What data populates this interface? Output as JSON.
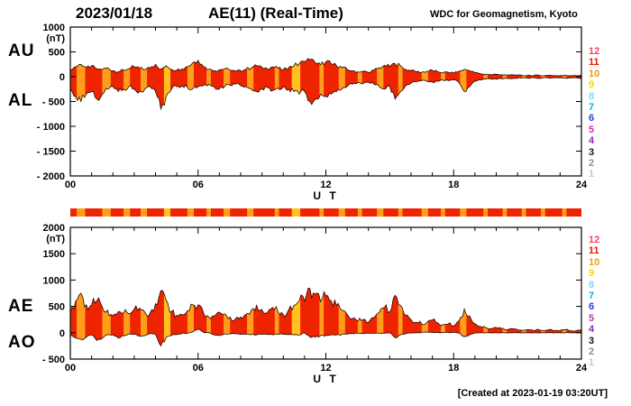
{
  "header": {
    "date": "2023/01/18",
    "title": "AE(11) (Real-Time)",
    "org": "WDC for Geomagnetism, Kyoto"
  },
  "footer": {
    "created": "[Created at 2023-01-19 03:20UT]"
  },
  "panels": {
    "top": {
      "labels": [
        "AU",
        "AL"
      ]
    },
    "bottom": {
      "labels": [
        "AE",
        "AO"
      ]
    }
  },
  "stations": [
    {
      "id": "12",
      "color": "#FF4060"
    },
    {
      "id": "11",
      "color": "#EE1500"
    },
    {
      "id": "10",
      "color": "#FF9900"
    },
    {
      "id": "9",
      "color": "#FFD300"
    },
    {
      "id": "8",
      "color": "#7FDBEA"
    },
    {
      "id": "7",
      "color": "#00B7D9"
    },
    {
      "id": "6",
      "color": "#2A3FE0"
    },
    {
      "id": "5",
      "color": "#CC2FB4"
    },
    {
      "id": "4",
      "color": "#8A2BBE"
    },
    {
      "id": "3",
      "color": "#1A1A1A"
    },
    {
      "id": "2",
      "color": "#8C8C8C"
    },
    {
      "id": "1",
      "color": "#C8C8C8"
    }
  ],
  "colors": {
    "fill_red": "#EE2400",
    "stripe_orange": "#FF9E1B",
    "trace": "#230800"
  },
  "color_bar": {
    "segments": [
      {
        "start": 0.3,
        "end": 0.7,
        "color": "#FF9E1B"
      },
      {
        "start": 1.5,
        "end": 1.9,
        "color": "#FF9E1B"
      },
      {
        "start": 2.5,
        "end": 2.8,
        "color": "#FF9E1B"
      },
      {
        "start": 3.3,
        "end": 3.6,
        "color": "#FF9E1B"
      },
      {
        "start": 4.4,
        "end": 4.7,
        "color": "#FFC21E"
      },
      {
        "start": 5.5,
        "end": 5.8,
        "color": "#FF9E1B"
      },
      {
        "start": 6.4,
        "end": 6.6,
        "color": "#FF9E1B"
      },
      {
        "start": 7.2,
        "end": 7.5,
        "color": "#FF9E1B"
      },
      {
        "start": 8.3,
        "end": 8.6,
        "color": "#FF9E1B"
      },
      {
        "start": 9.6,
        "end": 9.8,
        "color": "#FF9E1B"
      },
      {
        "start": 10.4,
        "end": 10.8,
        "color": "#FFC21E"
      },
      {
        "start": 11.7,
        "end": 11.9,
        "color": "#FF9E1B"
      },
      {
        "start": 12.6,
        "end": 12.9,
        "color": "#FF9E1B"
      },
      {
        "start": 13.5,
        "end": 13.7,
        "color": "#FF9E1B"
      },
      {
        "start": 14.4,
        "end": 14.7,
        "color": "#FF9E1B"
      },
      {
        "start": 15.4,
        "end": 15.6,
        "color": "#FF9E1B"
      },
      {
        "start": 16.5,
        "end": 16.8,
        "color": "#FF9E1B"
      },
      {
        "start": 17.4,
        "end": 17.6,
        "color": "#FF9E1B"
      },
      {
        "start": 18.3,
        "end": 18.6,
        "color": "#FF9E1B"
      },
      {
        "start": 19.4,
        "end": 19.6,
        "color": "#FF9E1B"
      },
      {
        "start": 20.3,
        "end": 20.5,
        "color": "#FF9E1B"
      },
      {
        "start": 21.2,
        "end": 21.4,
        "color": "#FF9E1B"
      },
      {
        "start": 22.1,
        "end": 22.3,
        "color": "#FF9E1B"
      },
      {
        "start": 23.1,
        "end": 23.3,
        "color": "#FF9E1B"
      }
    ]
  },
  "chart_data": [
    {
      "type": "area",
      "title": "AU / AL envelope (top panel)",
      "x_step_hours": 0.25,
      "xlim": [
        0,
        24
      ],
      "ylim": [
        -2000,
        1000
      ],
      "yticks": [
        "1000",
        "500",
        "0",
        "- 500",
        "- 1000",
        "- 1500",
        "- 2000"
      ],
      "xticks": [
        "00",
        "06",
        "12",
        "18",
        "24"
      ],
      "xlabel": "U T",
      "ylabel": "(nT)",
      "series": [
        {
          "name": "AU",
          "values": [
            150,
            200,
            250,
            180,
            220,
            160,
            140,
            180,
            120,
            100,
            130,
            160,
            200,
            170,
            140,
            180,
            250,
            150,
            220,
            150,
            130,
            160,
            200,
            280,
            330,
            200,
            150,
            120,
            140,
            160,
            130,
            110,
            120,
            150,
            180,
            220,
            190,
            160,
            200,
            170,
            140,
            180,
            220,
            260,
            300,
            340,
            280,
            240,
            300,
            260,
            220,
            180,
            150,
            120,
            100,
            110,
            90,
            130,
            180,
            230,
            200,
            260,
            220,
            150,
            120,
            100,
            90,
            110,
            130,
            100,
            80,
            90,
            70,
            110,
            150,
            120,
            80,
            60,
            50,
            40,
            50,
            40,
            30,
            40,
            30,
            20,
            30,
            20,
            30,
            20,
            30,
            20,
            20,
            30,
            20,
            20,
            30
          ]
        },
        {
          "name": "AL",
          "values": [
            -250,
            -400,
            -500,
            -350,
            -300,
            -450,
            -350,
            -250,
            -200,
            -300,
            -250,
            -200,
            -250,
            -300,
            -250,
            -200,
            -300,
            -650,
            -400,
            -250,
            -200,
            -180,
            -220,
            -250,
            -200,
            -180,
            -150,
            -200,
            -250,
            -200,
            -170,
            -150,
            -180,
            -200,
            -250,
            -300,
            -250,
            -220,
            -280,
            -230,
            -200,
            -250,
            -300,
            -350,
            -300,
            -500,
            -450,
            -350,
            -400,
            -350,
            -300,
            -250,
            -200,
            -150,
            -120,
            -140,
            -110,
            -150,
            -200,
            -250,
            -200,
            -450,
            -300,
            -180,
            -130,
            -100,
            -80,
            -90,
            -110,
            -90,
            -70,
            -80,
            -60,
            -120,
            -300,
            -200,
            -90,
            -60,
            -50,
            -40,
            -50,
            -40,
            -30,
            -40,
            -30,
            -20,
            -30,
            -20,
            -30,
            -20,
            -30,
            -20,
            -20,
            -30,
            -20,
            -20,
            -30
          ]
        }
      ]
    },
    {
      "type": "area",
      "title": "AE / AO envelope (bottom panel)",
      "x_step_hours": 0.25,
      "xlim": [
        0,
        24
      ],
      "ylim": [
        -500,
        2000
      ],
      "yticks": [
        "2000",
        "1500",
        "1000",
        "500",
        "0",
        "- 500"
      ],
      "xticks": [
        "00",
        "06",
        "12",
        "18",
        "24"
      ],
      "xlabel": "U T",
      "ylabel": "(nT)",
      "series": [
        {
          "name": "AE",
          "values": [
            400,
            600,
            750,
            530,
            520,
            610,
            490,
            430,
            320,
            400,
            380,
            360,
            450,
            470,
            390,
            380,
            550,
            800,
            620,
            400,
            330,
            340,
            420,
            530,
            530,
            380,
            300,
            320,
            390,
            360,
            300,
            260,
            300,
            350,
            430,
            520,
            440,
            380,
            480,
            400,
            340,
            430,
            520,
            610,
            600,
            840,
            730,
            590,
            700,
            610,
            520,
            430,
            350,
            270,
            220,
            250,
            200,
            280,
            380,
            480,
            400,
            710,
            520,
            330,
            250,
            200,
            170,
            200,
            240,
            190,
            150,
            170,
            130,
            230,
            450,
            320,
            170,
            120,
            100,
            80,
            100,
            80,
            60,
            80,
            60,
            40,
            60,
            40,
            60,
            40,
            60,
            40,
            40,
            60,
            40,
            40,
            60
          ]
        },
        {
          "name": "AO",
          "values": [
            -50,
            -100,
            -125,
            -85,
            -40,
            -145,
            -105,
            -35,
            -40,
            -100,
            -60,
            -20,
            -25,
            -65,
            -55,
            -10,
            -25,
            -250,
            -90,
            -50,
            -35,
            -10,
            -10,
            15,
            65,
            10,
            0,
            -40,
            -55,
            -20,
            -20,
            -20,
            -30,
            -25,
            -35,
            -40,
            -30,
            -30,
            -40,
            -30,
            -30,
            -35,
            -40,
            -45,
            0,
            -80,
            -85,
            -55,
            -50,
            -45,
            -40,
            -35,
            -25,
            -15,
            -10,
            -15,
            -10,
            -10,
            -10,
            -10,
            0,
            -95,
            -40,
            -15,
            -5,
            0,
            5,
            10,
            10,
            5,
            5,
            5,
            5,
            -5,
            -75,
            -40,
            -5,
            0,
            0,
            0,
            0,
            0,
            0,
            0,
            0,
            0,
            0,
            0,
            0,
            0,
            0,
            0,
            0,
            0,
            0,
            0,
            0
          ]
        }
      ]
    }
  ]
}
